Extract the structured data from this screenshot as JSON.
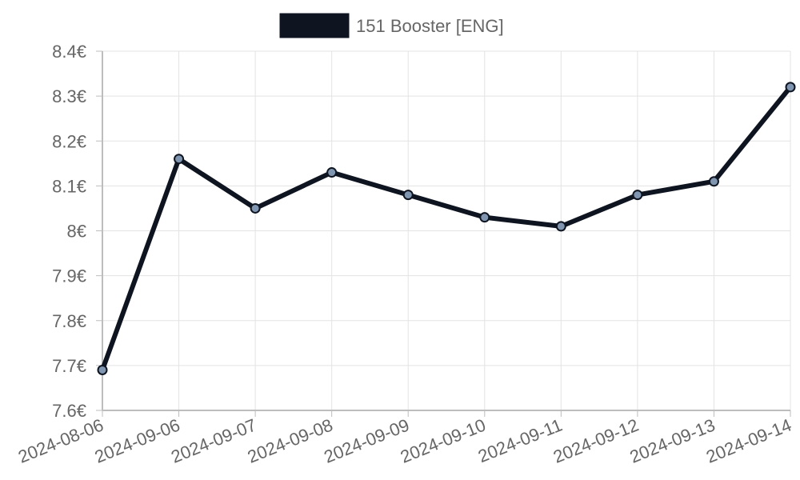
{
  "chart_data": {
    "type": "line",
    "title": "",
    "xlabel": "",
    "ylabel": "",
    "categories": [
      "2024-08-06",
      "2024-09-06",
      "2024-09-07",
      "2024-09-08",
      "2024-09-09",
      "2024-09-10",
      "2024-09-11",
      "2024-09-12",
      "2024-09-13",
      "2024-09-14"
    ],
    "series": [
      {
        "name": "151 Booster [ENG]",
        "values": [
          7.69,
          8.16,
          8.05,
          8.13,
          8.08,
          8.03,
          8.01,
          8.08,
          8.11,
          8.32
        ],
        "color": "#0e1420",
        "point_fill": "#8096b0"
      }
    ],
    "ylim": [
      7.6,
      8.4
    ],
    "yticks": [
      {
        "value": 7.6,
        "label": "7.6€"
      },
      {
        "value": 7.7,
        "label": "7.7€"
      },
      {
        "value": 7.8,
        "label": "7.8€"
      },
      {
        "value": 7.9,
        "label": "7.9€"
      },
      {
        "value": 8.0,
        "label": "8€"
      },
      {
        "value": 8.1,
        "label": "8.1€"
      },
      {
        "value": 8.2,
        "label": "8.2€"
      },
      {
        "value": 8.3,
        "label": "8.3€"
      },
      {
        "value": 8.4,
        "label": "8.4€"
      }
    ],
    "grid": true,
    "legend_position": "top"
  }
}
